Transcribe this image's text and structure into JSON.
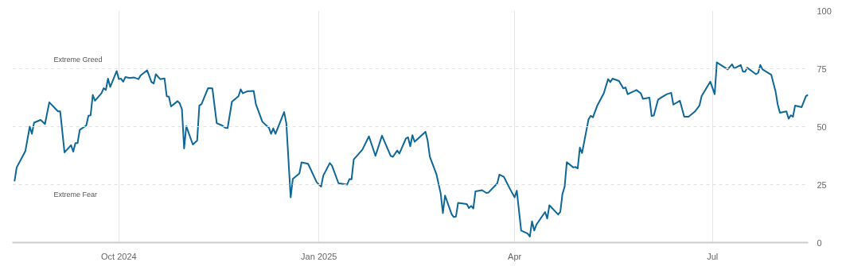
{
  "chart_data": {
    "type": "line",
    "x": [
      "2024-08-14",
      "2024-08-15",
      "2024-08-19",
      "2024-08-21",
      "2024-08-22",
      "2024-08-23",
      "2024-08-26",
      "2024-08-28",
      "2024-08-30",
      "2024-09-03",
      "2024-09-04",
      "2024-09-06",
      "2024-09-09",
      "2024-09-10",
      "2024-09-11",
      "2024-09-12",
      "2024-09-13",
      "2024-09-16",
      "2024-09-17",
      "2024-09-18",
      "2024-09-19",
      "2024-09-20",
      "2024-09-23",
      "2024-09-24",
      "2024-09-25",
      "2024-09-26",
      "2024-09-27",
      "2024-09-30",
      "2024-10-01",
      "2024-10-02",
      "2024-10-03",
      "2024-10-04",
      "2024-10-06",
      "2024-10-08",
      "2024-10-10",
      "2024-10-11",
      "2024-10-14",
      "2024-10-16",
      "2024-10-17",
      "2024-10-18",
      "2024-10-20",
      "2024-10-22",
      "2024-10-23",
      "2024-10-24",
      "2024-10-25",
      "2024-10-28",
      "2024-10-29",
      "2024-10-30",
      "2024-10-31",
      "2024-11-01",
      "2024-11-04",
      "2024-11-06",
      "2024-11-07",
      "2024-11-08",
      "2024-11-11",
      "2024-11-13",
      "2024-11-15",
      "2024-11-17",
      "2024-11-19",
      "2024-11-20",
      "2024-11-22",
      "2024-11-25",
      "2024-11-26",
      "2024-11-27",
      "2024-11-29",
      "2024-12-02",
      "2024-12-03",
      "2024-12-06",
      "2024-12-09",
      "2024-12-10",
      "2024-12-11",
      "2024-12-12",
      "2024-12-16",
      "2024-12-17",
      "2024-12-19",
      "2024-12-20",
      "2024-12-23",
      "2024-12-24",
      "2024-12-27",
      "2024-12-31",
      "2025-01-02",
      "2025-01-03",
      "2025-01-06",
      "2025-01-07",
      "2025-01-10",
      "2025-01-14",
      "2025-01-15",
      "2025-01-16",
      "2025-01-17",
      "2025-01-21",
      "2025-01-24",
      "2025-01-27",
      "2025-01-30",
      "2025-02-03",
      "2025-02-04",
      "2025-02-06",
      "2025-02-07",
      "2025-02-10",
      "2025-02-11",
      "2025-02-12",
      "2025-02-13",
      "2025-02-14",
      "2025-02-19",
      "2025-02-20",
      "2025-02-21",
      "2025-02-24",
      "2025-02-26",
      "2025-02-27",
      "2025-02-28",
      "2025-03-03",
      "2025-03-04",
      "2025-03-05",
      "2025-03-06",
      "2025-03-10",
      "2025-03-11",
      "2025-03-12",
      "2025-03-13",
      "2025-03-14",
      "2025-03-17",
      "2025-03-19",
      "2025-03-20",
      "2025-03-24",
      "2025-03-25",
      "2025-03-27",
      "2025-03-30",
      "2025-04-01",
      "2025-04-02",
      "2025-04-04",
      "2025-04-07",
      "2025-04-08",
      "2025-04-09",
      "2025-04-10",
      "2025-04-11",
      "2025-04-15",
      "2025-04-16",
      "2025-04-17",
      "2025-04-21",
      "2025-04-22",
      "2025-04-23",
      "2025-04-24",
      "2025-04-25",
      "2025-04-28",
      "2025-04-29",
      "2025-04-30",
      "2025-05-01",
      "2025-05-02",
      "2025-05-05",
      "2025-05-06",
      "2025-05-07",
      "2025-05-09",
      "2025-05-12",
      "2025-05-14",
      "2025-05-15",
      "2025-05-16",
      "2025-05-19",
      "2025-05-21",
      "2025-05-22",
      "2025-05-23",
      "2025-05-27",
      "2025-05-29",
      "2025-05-30",
      "2025-06-02",
      "2025-06-03",
      "2025-06-04",
      "2025-06-06",
      "2025-06-08",
      "2025-06-10",
      "2025-06-12",
      "2025-06-13",
      "2025-06-16",
      "2025-06-18",
      "2025-06-20",
      "2025-06-23",
      "2025-06-25",
      "2025-06-26",
      "2025-06-30",
      "2025-07-02",
      "2025-07-03",
      "2025-07-08",
      "2025-07-10",
      "2025-07-11",
      "2025-07-14",
      "2025-07-15",
      "2025-07-16",
      "2025-07-17",
      "2025-07-21",
      "2025-07-22",
      "2025-07-23",
      "2025-07-24",
      "2025-07-28",
      "2025-07-30",
      "2025-07-31",
      "2025-08-01",
      "2025-08-04",
      "2025-08-05",
      "2025-08-06",
      "2025-08-07",
      "2025-08-08",
      "2025-08-11",
      "2025-08-13",
      "2025-08-14"
    ],
    "series": [
      {
        "color": "#0e6796",
        "values": [
          26.4,
          32.4,
          39.5,
          50,
          46.9,
          51.7,
          52.9,
          51.1,
          60.5,
          56.6,
          56.6,
          38.9,
          42,
          39.2,
          42.9,
          42.9,
          48.6,
          50.5,
          54.7,
          54.9,
          63.7,
          61.2,
          64.4,
          66.6,
          65.8,
          70.7,
          67.1,
          74,
          70.5,
          70.7,
          69.4,
          71.4,
          71,
          71.2,
          70.5,
          72.1,
          74.3,
          69.2,
          68.6,
          72.6,
          70.5,
          70.8,
          63.1,
          62.9,
          58.7,
          61,
          60,
          57.5,
          40.6,
          50.2,
          42.3,
          44,
          59.1,
          59.7,
          66.6,
          66.5,
          51.5,
          50.7,
          49.5,
          49.4,
          60.8,
          63.1,
          66.1,
          64.4,
          65.2,
          65.4,
          59.7,
          52.1,
          49.5,
          46.9,
          49.3,
          46.9,
          56.3,
          51.5,
          19.5,
          27.5,
          29.8,
          34.6,
          34,
          26,
          24.1,
          28.9,
          34.3,
          33.2,
          25.6,
          25,
          27.4,
          27.3,
          35.8,
          40.1,
          45.8,
          37.4,
          46.1,
          37.4,
          37,
          39.7,
          38.4,
          44.9,
          45.4,
          41.5,
          46.3,
          43.5,
          47.8,
          44,
          37,
          29.6,
          21.2,
          12.7,
          20.3,
          12.3,
          11,
          11.2,
          17.1,
          16.6,
          14.9,
          15.8,
          14.7,
          22.1,
          22.6,
          21.4,
          21.6,
          25.5,
          29.3,
          28.4,
          22.9,
          19.5,
          22.4,
          5.2,
          3.9,
          2.6,
          9.2,
          5.2,
          7.7,
          13.2,
          10.4,
          16.1,
          12.1,
          13.2,
          21,
          24.1,
          34.7,
          32.4,
          32.6,
          32,
          41,
          38.6,
          53.2,
          54.7,
          54,
          59.1,
          64.4,
          70.5,
          69.2,
          70.7,
          69.7,
          66.5,
          66.9,
          64,
          65.8,
          64.4,
          62,
          62.5,
          54.6,
          54.8,
          61.7,
          62.9,
          64,
          64.6,
          59.5,
          61.2,
          54.3,
          54.3,
          56.6,
          59.1,
          63.2,
          69.4,
          64,
          77.7,
          74.7,
          76.9,
          75.1,
          76.6,
          73.7,
          73.7,
          75.4,
          72.6,
          73.2,
          76.6,
          74.7,
          72.4,
          65.2,
          59.5,
          56,
          56.6,
          53.4,
          54.9,
          54.3,
          59.1,
          58.4,
          63.2,
          63.7
        ]
      }
    ],
    "xlim": [
      "2024-08-13",
      "2025-08-14"
    ],
    "xticks": [
      {
        "value": "2024-10-01",
        "label": "Oct 2024"
      },
      {
        "value": "2025-01-01",
        "label": "Jan 2025"
      },
      {
        "value": "2025-04-01",
        "label": "Apr"
      },
      {
        "value": "2025-07-01",
        "label": "Jul"
      }
    ],
    "ylim": [
      0,
      100
    ],
    "yticks": [
      0,
      25,
      50,
      75,
      100
    ],
    "grid": true,
    "marker": "none",
    "line_style": "solid",
    "ref_lines": [
      {
        "axis": "y",
        "value": 75,
        "label": "Extreme Greed",
        "color": "#e0e0e0",
        "line_style": "dashed"
      },
      {
        "axis": "y",
        "value": 50,
        "color": "#e0e0e0",
        "line_style": "dashed"
      },
      {
        "axis": "y",
        "value": 25,
        "label": "Extreme Fear",
        "color": "#e0e0e0",
        "line_style": "dashed"
      }
    ]
  }
}
